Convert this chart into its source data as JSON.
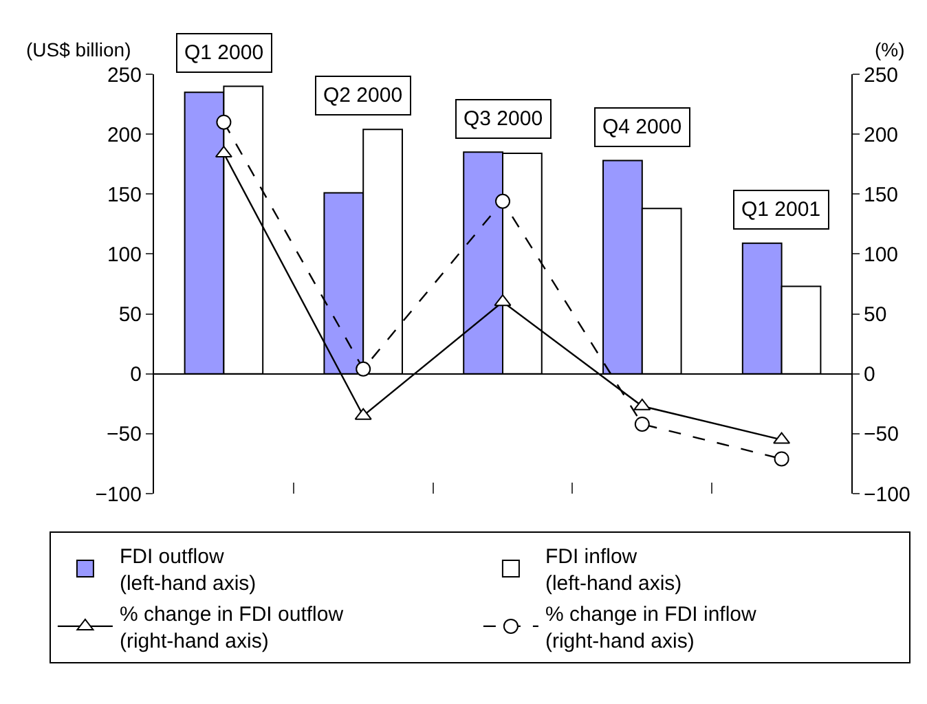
{
  "chart_data": {
    "type": "bar",
    "categories": [
      "Q1 2000",
      "Q2 2000",
      "Q3 2000",
      "Q4 2000",
      "Q1 2001"
    ],
    "series": [
      {
        "name": "FDI outflow\n(left-hand axis)",
        "color": "#9999ff",
        "values": [
          235,
          151,
          185,
          178,
          109
        ]
      },
      {
        "name": "FDI inflow\n(left-hand axis)",
        "color": "#ffffff",
        "values": [
          240,
          204,
          184,
          138,
          73
        ]
      },
      {
        "name": "% change in FDI outflow\n(right-hand axis)",
        "type": "line",
        "axis": "y2",
        "color": "#000000",
        "marker": "triangle",
        "line_style": "solid",
        "values": [
          184,
          -35,
          60,
          -27,
          -55
        ]
      },
      {
        "name": "% change in FDI inflow\n(right-hand axis)",
        "type": "line",
        "axis": "y2",
        "color": "#000000",
        "marker": "circle",
        "line_style": "dashed",
        "values": [
          210,
          4,
          144,
          -42,
          -71
        ]
      }
    ],
    "ylabel": "(US$ billion)",
    "y2label": "(%)",
    "ylim": [
      -100,
      250
    ],
    "yticks": [
      {
        "value": -100,
        "label": "−100"
      },
      {
        "value": -50,
        "label": "−50"
      },
      0,
      50,
      100,
      150,
      200,
      250
    ],
    "y2lim": [
      -100,
      250
    ],
    "y2ticks": [
      {
        "value": -100,
        "label": "−100"
      },
      {
        "value": -50,
        "label": "−50"
      },
      0,
      50,
      100,
      150,
      200,
      250
    ],
    "legend": "bottom"
  }
}
